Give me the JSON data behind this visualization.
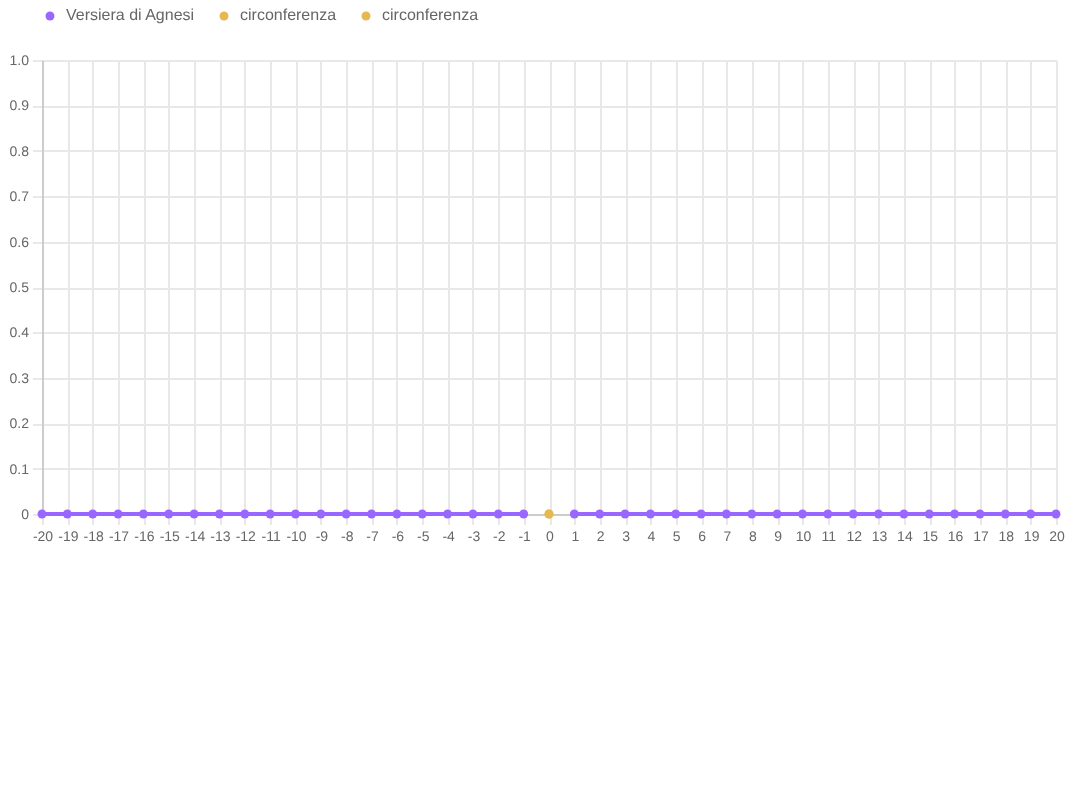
{
  "chart_data": {
    "type": "line",
    "x": [
      -20,
      -19,
      -18,
      -17,
      -16,
      -15,
      -14,
      -13,
      -12,
      -11,
      -10,
      -9,
      -8,
      -7,
      -6,
      -5,
      -4,
      -3,
      -2,
      -1,
      0,
      1,
      2,
      3,
      4,
      5,
      6,
      7,
      8,
      9,
      10,
      11,
      12,
      13,
      14,
      15,
      16,
      17,
      18,
      19,
      20
    ],
    "series": [
      {
        "name": "Versiera di Agnesi",
        "color": "#9966ff",
        "values": [
          0,
          0,
          0,
          0,
          0,
          0,
          0,
          0,
          0,
          0,
          0,
          0,
          0,
          0,
          0,
          0,
          0,
          0,
          0,
          0,
          null,
          0,
          0,
          0,
          0,
          0,
          0,
          0,
          0,
          0,
          0,
          0,
          0,
          0,
          0,
          0,
          0,
          0,
          0,
          0,
          0
        ]
      },
      {
        "name": "circonferenza",
        "color": "#e6b84f",
        "values": [
          null,
          null,
          null,
          null,
          null,
          null,
          null,
          null,
          null,
          null,
          null,
          null,
          null,
          null,
          null,
          null,
          null,
          null,
          null,
          null,
          0,
          null,
          null,
          null,
          null,
          null,
          null,
          null,
          null,
          null,
          null,
          null,
          null,
          null,
          null,
          null,
          null,
          null,
          null,
          null,
          null
        ]
      },
      {
        "name": "circonferenza",
        "color": "#e6b84f",
        "values": [
          null,
          null,
          null,
          null,
          null,
          null,
          null,
          null,
          null,
          null,
          null,
          null,
          null,
          null,
          null,
          null,
          null,
          null,
          null,
          null,
          0,
          null,
          null,
          null,
          null,
          null,
          null,
          null,
          null,
          null,
          null,
          null,
          null,
          null,
          null,
          null,
          null,
          null,
          null,
          null,
          null
        ]
      }
    ],
    "xlim": [
      -20,
      20
    ],
    "xticks": [
      -20,
      -19,
      -18,
      -17,
      -16,
      -15,
      -14,
      -13,
      -12,
      -11,
      -10,
      -9,
      -8,
      -7,
      -6,
      -5,
      -4,
      -3,
      -2,
      -1,
      0,
      1,
      2,
      3,
      4,
      5,
      6,
      7,
      8,
      9,
      10,
      11,
      12,
      13,
      14,
      15,
      16,
      17,
      18,
      19,
      20
    ],
    "ylim": [
      0,
      1
    ],
    "yticks": [
      0,
      0.1,
      0.2,
      0.3,
      0.4,
      0.5,
      0.6,
      0.7,
      0.8,
      0.9,
      {
        "value": 1,
        "label": "1.0"
      }
    ],
    "grid": true,
    "legend": "top",
    "marker": "circle",
    "line_style": "solid"
  }
}
